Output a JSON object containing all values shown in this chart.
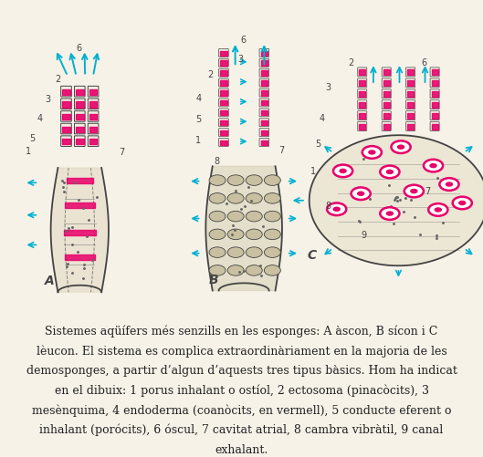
{
  "background_color": "#f5f0e8",
  "title": "",
  "caption_lines": [
    "Sistemes aqüífers més senzills en les esponges: A àscon, B sícon i C",
    "lèucon. El sistema es complica extraordinàriament en la majoria de les",
    "demosponges, a partir d’algun d’aquests tres tipus bàsics. Hom ha indicat",
    "en el dibuix: 1 porus inhalant o ostíol, 2 ectosoma (pinacòcits), 3",
    "mesènquima, 4 endoderma (coanòcits, en vermell), 5 conducte eferent o",
    "inhalant (porócits), 6 óscul, 7 cavitat atrial, 8 cambra vibràtil, 9 canal",
    "exhalant."
  ],
  "fig_width": 5.29,
  "fig_height": 5.01,
  "dpi": 100,
  "caption_fontsize": 9.0,
  "caption_color": "#222222",
  "image_bg": "#f7f2e8",
  "pink": "#e8006a",
  "cyan": "#00b0d0",
  "outline": "#444444",
  "beige": "#e0d8c0",
  "bumpy": "#c8c0a0"
}
